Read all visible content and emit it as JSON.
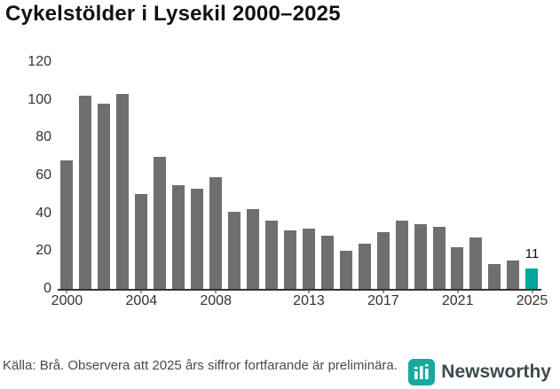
{
  "title": "Cykelstölder i Lysekil 2000–2025",
  "footer": {
    "source": "Källa: Brå. Observera att 2025 års siffror fortfarande är preliminära."
  },
  "brand": {
    "name": "Newsworthy",
    "icon": "bar-chart-badge-icon",
    "icon_color": "#17a89e",
    "text_color": "#3f4a50"
  },
  "chart_data": {
    "type": "bar",
    "title": "Cykelstölder i Lysekil 2000–2025",
    "xlabel": "",
    "ylabel": "",
    "categories": [
      2000,
      2001,
      2002,
      2003,
      2004,
      2005,
      2006,
      2007,
      2008,
      2009,
      2010,
      2011,
      2012,
      2013,
      2014,
      2015,
      2016,
      2017,
      2018,
      2019,
      2020,
      2021,
      2022,
      2023,
      2024,
      2025
    ],
    "values": [
      68,
      102,
      98,
      103,
      50,
      70,
      55,
      53,
      59,
      41,
      42,
      36,
      31,
      32,
      28,
      20,
      24,
      30,
      36,
      34,
      33,
      22,
      27,
      13,
      15,
      11
    ],
    "bar_color": "#6f6f6f",
    "highlight_index": 25,
    "highlight_color": "#00a79c",
    "highlight_label": "11",
    "ylim": [
      0,
      120
    ],
    "yticks": [
      0,
      20,
      40,
      60,
      80,
      100,
      120
    ],
    "xticks": [
      2000,
      2004,
      2008,
      2013,
      2017,
      2021,
      2025
    ],
    "grid": false,
    "legend": "none"
  }
}
